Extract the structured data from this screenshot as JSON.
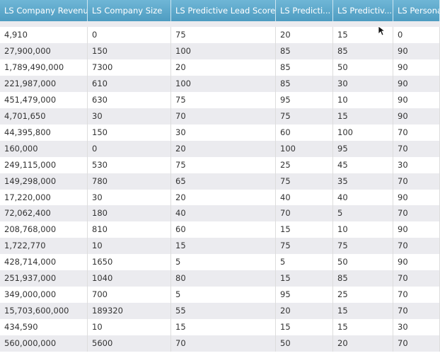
{
  "table": {
    "headers": [
      "LS Company Revenue",
      "LS Company Size",
      "LS Predictive Lead Score",
      "LS Predicti...",
      "LS Predictiv...",
      "LS Persona"
    ],
    "rows": [
      [
        "4,910",
        "0",
        "75",
        "20",
        "15",
        "0"
      ],
      [
        "27,900,000",
        "150",
        "100",
        "85",
        "85",
        "90"
      ],
      [
        "1,789,490,000",
        "7300",
        "20",
        "85",
        "50",
        "90"
      ],
      [
        "221,987,000",
        "610",
        "100",
        "85",
        "30",
        "90"
      ],
      [
        "451,479,000",
        "630",
        "75",
        "95",
        "10",
        "90"
      ],
      [
        "4,701,650",
        "30",
        "70",
        "75",
        "15",
        "90"
      ],
      [
        "44,395,800",
        "150",
        "30",
        "60",
        "100",
        "70"
      ],
      [
        "160,000",
        "0",
        "20",
        "100",
        "95",
        "70"
      ],
      [
        "249,115,000",
        "530",
        "75",
        "25",
        "45",
        "30"
      ],
      [
        "149,298,000",
        "780",
        "65",
        "75",
        "35",
        "70"
      ],
      [
        "17,220,000",
        "30",
        "20",
        "40",
        "40",
        "90"
      ],
      [
        "72,062,400",
        "180",
        "40",
        "70",
        "5",
        "70"
      ],
      [
        "208,768,000",
        "810",
        "60",
        "15",
        "10",
        "90"
      ],
      [
        "1,722,770",
        "10",
        "15",
        "75",
        "75",
        "70"
      ],
      [
        "428,714,000",
        "1650",
        "5",
        "5",
        "50",
        "90"
      ],
      [
        "251,937,000",
        "1040",
        "80",
        "15",
        "85",
        "70"
      ],
      [
        "349,000,000",
        "700",
        "5",
        "95",
        "25",
        "70"
      ],
      [
        "15,703,600,000",
        "189320",
        "55",
        "20",
        "15",
        "70"
      ],
      [
        "434,590",
        "10",
        "15",
        "15",
        "15",
        "30"
      ],
      [
        "560,000,000",
        "5600",
        "70",
        "50",
        "20",
        "70"
      ]
    ]
  }
}
